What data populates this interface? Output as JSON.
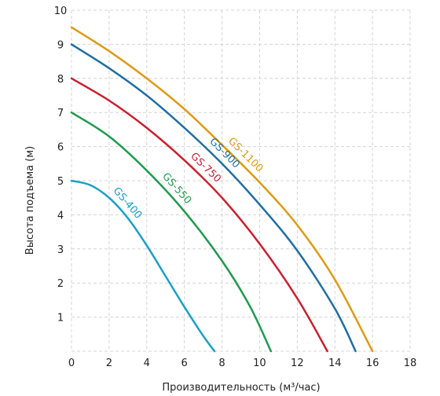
{
  "chart_data": {
    "type": "line",
    "xlabel": "Производительность (м³/час)",
    "ylabel": "Высота подъема (м)",
    "xlim": [
      0,
      18
    ],
    "ylim": [
      0,
      10
    ],
    "x_ticks": [
      0,
      2,
      4,
      6,
      8,
      10,
      12,
      14,
      16,
      18
    ],
    "y_ticks": [
      1,
      2,
      3,
      4,
      5,
      6,
      7,
      8,
      9,
      10
    ],
    "grid": true,
    "series": [
      {
        "name": "GS-400",
        "color": "#1a9fc8",
        "points": [
          [
            0,
            5.0
          ],
          [
            1,
            4.87
          ],
          [
            2,
            4.5
          ],
          [
            3,
            3.9
          ],
          [
            4,
            3.1
          ],
          [
            5,
            2.2
          ],
          [
            6,
            1.3
          ],
          [
            7,
            0.45
          ],
          [
            7.6,
            0.0
          ]
        ]
      },
      {
        "name": "GS-550",
        "color": "#1f9a4e",
        "points": [
          [
            0,
            7.0
          ],
          [
            2,
            6.3
          ],
          [
            4,
            5.3
          ],
          [
            6,
            4.1
          ],
          [
            8,
            2.65
          ],
          [
            9.5,
            1.3
          ],
          [
            10.6,
            0.0
          ]
        ]
      },
      {
        "name": "GS-750",
        "color": "#cc1f2e",
        "points": [
          [
            0,
            8.0
          ],
          [
            2,
            7.35
          ],
          [
            4,
            6.55
          ],
          [
            6,
            5.6
          ],
          [
            8,
            4.5
          ],
          [
            10,
            3.15
          ],
          [
            12,
            1.55
          ],
          [
            13.6,
            0.0
          ]
        ]
      },
      {
        "name": "GS-900",
        "color": "#1f6fa4",
        "points": [
          [
            0,
            9.0
          ],
          [
            2,
            8.3
          ],
          [
            4,
            7.5
          ],
          [
            6,
            6.55
          ],
          [
            8,
            5.5
          ],
          [
            10,
            4.3
          ],
          [
            12,
            2.95
          ],
          [
            14,
            1.25
          ],
          [
            15.1,
            0.0
          ]
        ]
      },
      {
        "name": "GS-1100",
        "color": "#e09a14",
        "points": [
          [
            0,
            9.5
          ],
          [
            2,
            8.8
          ],
          [
            4,
            8.0
          ],
          [
            6,
            7.1
          ],
          [
            8,
            6.05
          ],
          [
            10,
            4.95
          ],
          [
            12,
            3.7
          ],
          [
            14,
            2.1
          ],
          [
            16.0,
            0.0
          ]
        ]
      }
    ]
  }
}
